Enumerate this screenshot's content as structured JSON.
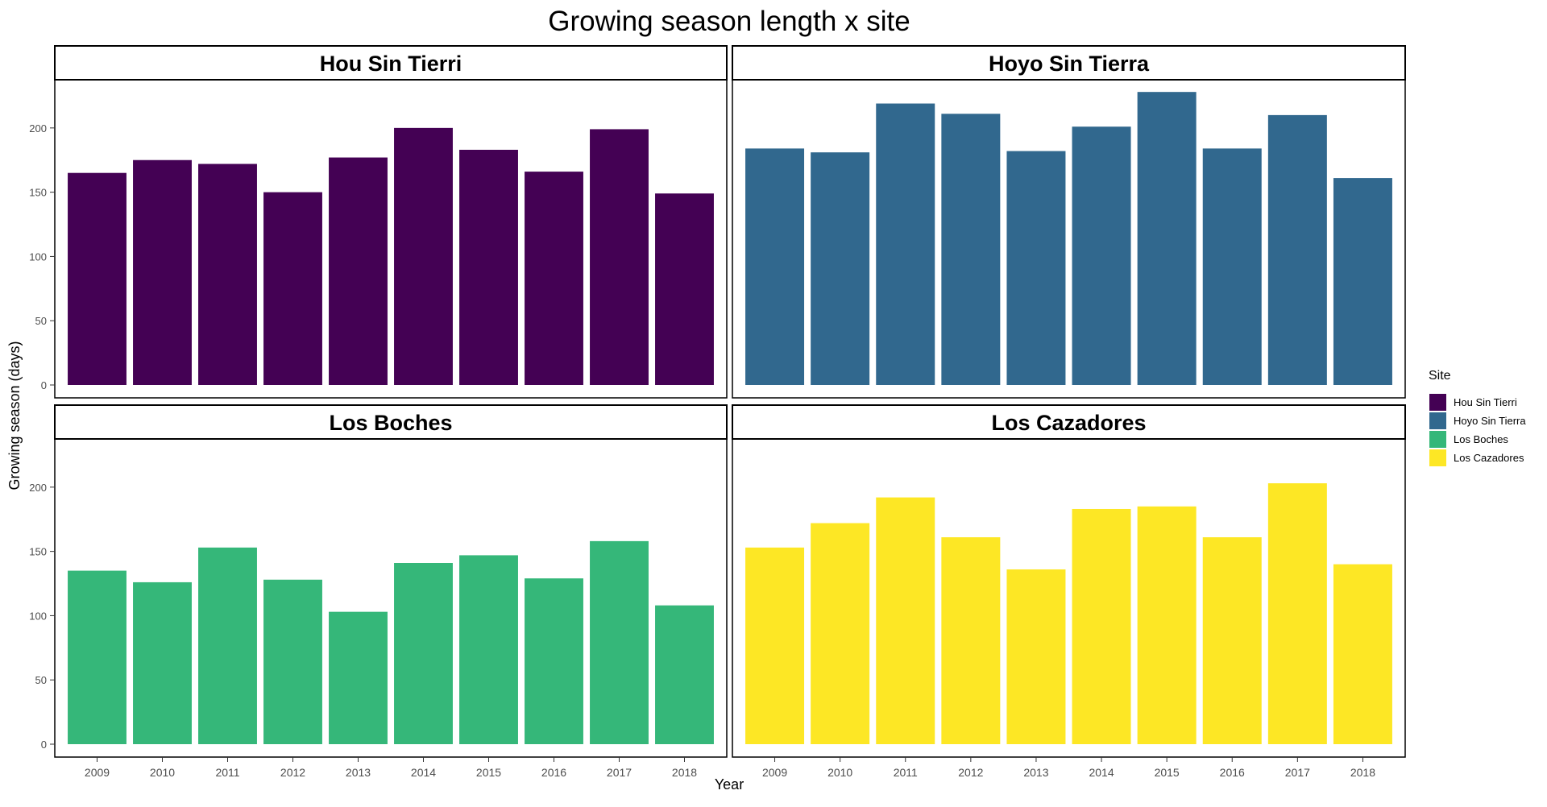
{
  "chart_data": {
    "type": "bar",
    "title": "Growing season length x site",
    "xlabel": "Year",
    "ylabel": "Growing season (days)",
    "categories": [
      "2009",
      "2010",
      "2011",
      "2012",
      "2013",
      "2014",
      "2015",
      "2016",
      "2017",
      "2018"
    ],
    "ylim": [
      0,
      240
    ],
    "yticks": [
      0,
      50,
      100,
      150,
      200
    ],
    "grid": false,
    "legend_position": "right",
    "legend_title": "Site",
    "series": [
      {
        "name": "Hou Sin Tierri",
        "color": "#440154",
        "values": [
          165,
          175,
          172,
          150,
          177,
          200,
          183,
          166,
          199,
          149
        ]
      },
      {
        "name": "Hoyo Sin Tierra",
        "color": "#31688E",
        "values": [
          184,
          181,
          219,
          211,
          182,
          201,
          228,
          184,
          210,
          161
        ]
      },
      {
        "name": "Los Boches",
        "color": "#35B779",
        "values": [
          135,
          126,
          153,
          128,
          103,
          141,
          147,
          129,
          158,
          108
        ]
      },
      {
        "name": "Los Cazadores",
        "color": "#FDE725",
        "values": [
          153,
          172,
          192,
          161,
          136,
          183,
          185,
          161,
          203,
          140
        ]
      }
    ]
  }
}
